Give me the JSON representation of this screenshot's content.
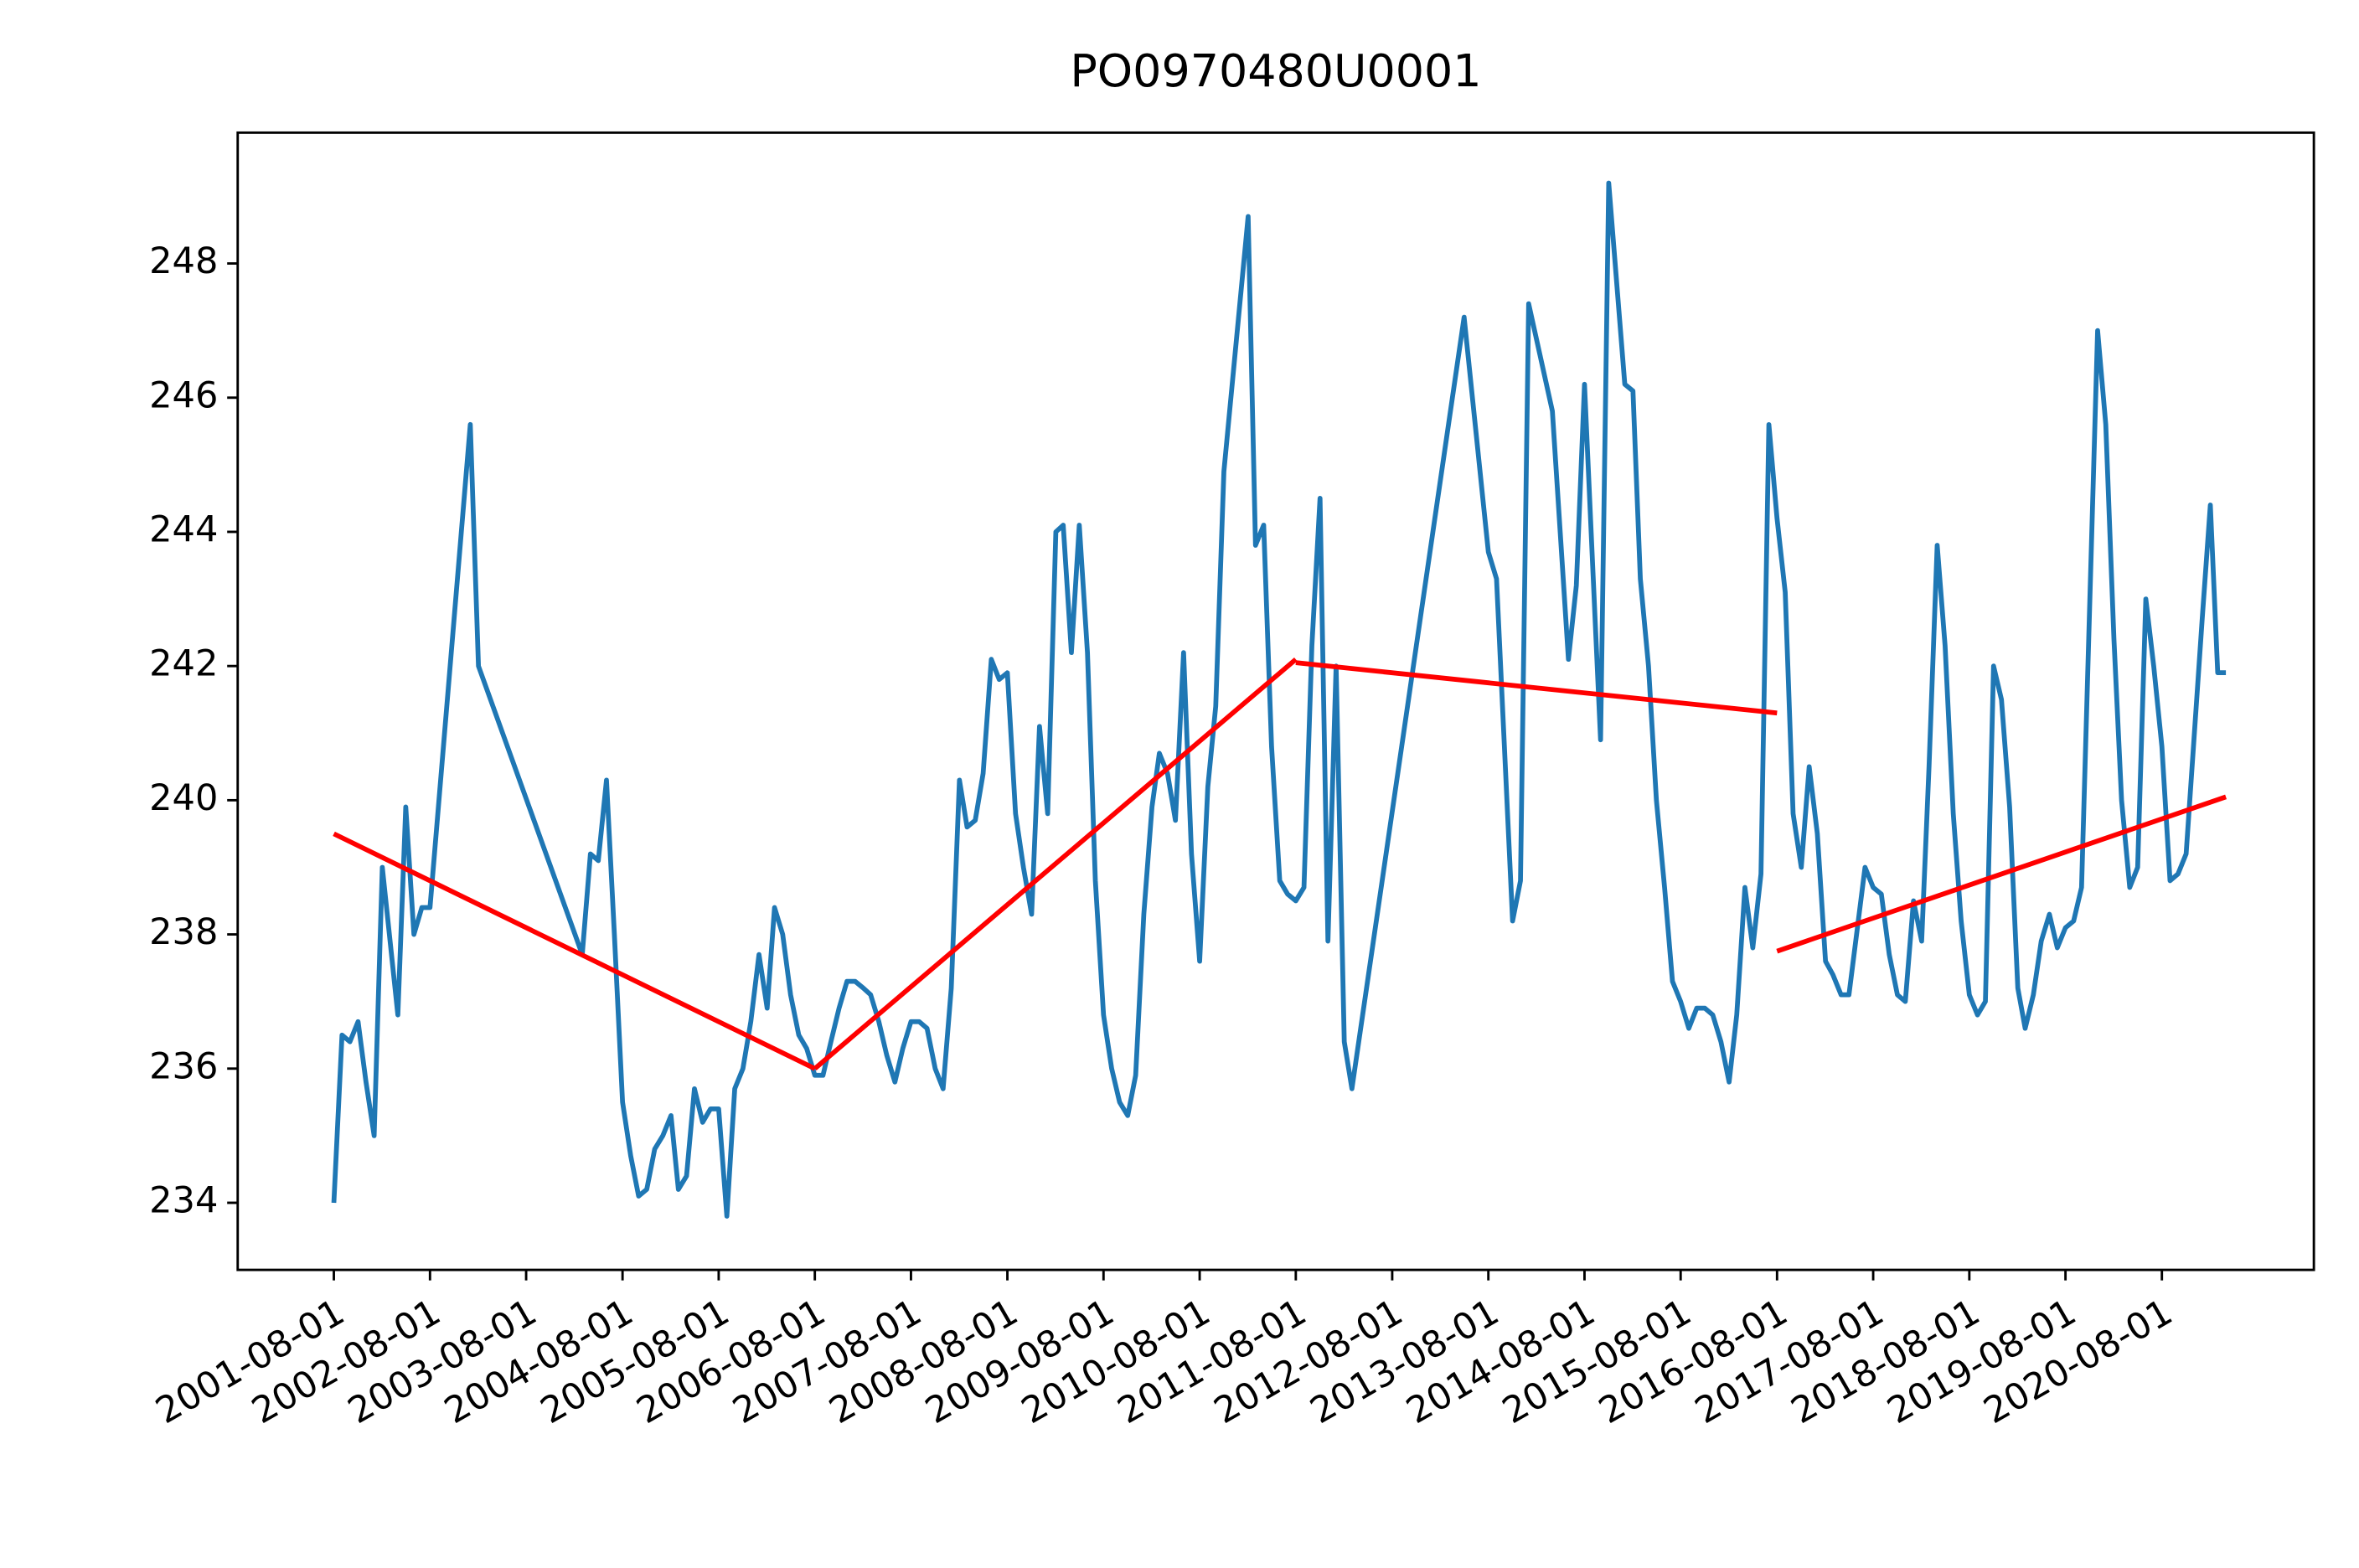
{
  "chart_data": {
    "type": "line",
    "title": "PO0970480U0001",
    "xlim": [
      "2000-08-01",
      "2022-03-01"
    ],
    "ylim": [
      233.0,
      249.95
    ],
    "yticks": [
      234,
      236,
      238,
      240,
      242,
      244,
      246,
      248
    ],
    "xticks": [
      "2001-08-01",
      "2002-08-01",
      "2003-08-01",
      "2004-08-01",
      "2005-08-01",
      "2006-08-01",
      "2007-08-01",
      "2008-08-01",
      "2009-08-01",
      "2010-08-01",
      "2011-08-01",
      "2012-08-01",
      "2013-08-01",
      "2014-08-01",
      "2015-08-01",
      "2016-08-01",
      "2017-08-01",
      "2018-08-01",
      "2019-08-01",
      "2020-08-01"
    ],
    "series": [
      {
        "color": "#1f77b4",
        "x": [
          "2001-08-01",
          "2001-09-01",
          "2001-10-01",
          "2001-11-01",
          "2001-12-01",
          "2002-01-01",
          "2002-02-01",
          "2002-04-01",
          "2002-05-01",
          "2002-06-01",
          "2002-07-01",
          "2002-08-01",
          "2003-01-01",
          "2003-02-01",
          "2004-03-01",
          "2004-04-01",
          "2004-05-01",
          "2004-06-01",
          "2004-07-01",
          "2004-08-01",
          "2004-09-01",
          "2004-10-01",
          "2004-11-01",
          "2004-12-01",
          "2005-01-01",
          "2005-02-01",
          "2005-03-01",
          "2005-04-01",
          "2005-05-01",
          "2005-06-01",
          "2005-07-01",
          "2005-08-01",
          "2005-09-01",
          "2005-10-01",
          "2005-11-01",
          "2005-12-01",
          "2006-01-01",
          "2006-02-01",
          "2006-03-01",
          "2006-04-01",
          "2006-05-01",
          "2006-06-01",
          "2006-07-01",
          "2006-08-01",
          "2006-09-01",
          "2006-10-01",
          "2006-11-01",
          "2006-12-01",
          "2007-01-01",
          "2007-02-01",
          "2007-03-01",
          "2007-04-01",
          "2007-05-01",
          "2007-06-01",
          "2007-07-01",
          "2007-08-01",
          "2007-09-01",
          "2007-10-01",
          "2007-11-01",
          "2007-12-01",
          "2008-01-01",
          "2008-02-01",
          "2008-03-01",
          "2008-04-01",
          "2008-05-01",
          "2008-06-01",
          "2008-07-01",
          "2008-08-01",
          "2008-09-01",
          "2008-10-01",
          "2008-11-01",
          "2008-12-01",
          "2009-01-01",
          "2009-02-01",
          "2009-03-01",
          "2009-04-01",
          "2009-05-01",
          "2009-06-01",
          "2009-07-01",
          "2009-08-01",
          "2009-09-01",
          "2009-10-01",
          "2009-11-01",
          "2009-12-01",
          "2010-01-01",
          "2010-02-01",
          "2010-03-01",
          "2010-04-01",
          "2010-05-01",
          "2010-06-01",
          "2010-07-01",
          "2010-08-01",
          "2010-09-01",
          "2010-10-01",
          "2010-11-01",
          "2011-02-01",
          "2011-03-01",
          "2011-04-01",
          "2011-05-01",
          "2011-06-01",
          "2011-07-01",
          "2011-08-01",
          "2011-09-01",
          "2011-10-01",
          "2011-11-01",
          "2011-12-01",
          "2012-01-01",
          "2012-02-01",
          "2012-03-01",
          "2013-05-01",
          "2013-08-01",
          "2013-09-01",
          "2013-11-01",
          "2013-12-01",
          "2014-01-01",
          "2014-04-01",
          "2014-06-01",
          "2014-07-01",
          "2014-08-01",
          "2014-09-01",
          "2014-10-01",
          "2014-11-01",
          "2015-01-01",
          "2015-02-01",
          "2015-03-01",
          "2015-04-01",
          "2015-05-01",
          "2015-06-01",
          "2015-07-01",
          "2015-08-01",
          "2015-09-01",
          "2015-10-01",
          "2015-11-01",
          "2015-12-01",
          "2016-01-01",
          "2016-02-01",
          "2016-03-01",
          "2016-04-01",
          "2016-05-01",
          "2016-06-01",
          "2016-07-01",
          "2016-08-01",
          "2016-09-01",
          "2016-10-01",
          "2016-11-01",
          "2016-12-01",
          "2017-01-01",
          "2017-02-01",
          "2017-03-01",
          "2017-04-01",
          "2017-05-01",
          "2017-07-01",
          "2017-08-01",
          "2017-09-01",
          "2017-10-01",
          "2017-11-01",
          "2017-12-01",
          "2018-01-01",
          "2018-02-01",
          "2018-03-01",
          "2018-04-01",
          "2018-05-01",
          "2018-06-01",
          "2018-07-01",
          "2018-08-01",
          "2018-09-01",
          "2018-10-01",
          "2018-11-01",
          "2018-12-01",
          "2019-01-01",
          "2019-02-01",
          "2019-03-01",
          "2019-04-01",
          "2019-05-01",
          "2019-06-01",
          "2019-07-01",
          "2019-08-01",
          "2019-09-01",
          "2019-10-01",
          "2019-12-01",
          "2020-01-01",
          "2020-02-01",
          "2020-03-01",
          "2020-04-01",
          "2020-05-01",
          "2020-06-01",
          "2020-07-01",
          "2020-08-01",
          "2020-09-01",
          "2020-10-01",
          "2020-11-01",
          "2021-01-01",
          "2021-02-01",
          "2021-03-01",
          "2021-04-01"
        ],
        "values": [
          234.0,
          236.5,
          236.4,
          236.7,
          235.8,
          235.0,
          239.0,
          236.8,
          239.9,
          238.0,
          238.4,
          238.4,
          245.6,
          242.0,
          237.7,
          239.2,
          239.1,
          240.3,
          238.0,
          235.5,
          234.7,
          234.1,
          234.2,
          234.8,
          235.0,
          235.3,
          234.2,
          234.4,
          235.7,
          235.2,
          235.4,
          235.4,
          233.8,
          235.7,
          236.0,
          236.7,
          237.7,
          236.9,
          238.4,
          238.0,
          237.1,
          236.5,
          236.3,
          235.9,
          235.9,
          236.4,
          236.9,
          237.3,
          237.3,
          237.2,
          237.1,
          236.7,
          236.2,
          235.8,
          236.3,
          236.7,
          236.7,
          236.6,
          236.0,
          235.7,
          237.2,
          240.3,
          239.6,
          239.7,
          240.4,
          242.1,
          241.8,
          241.9,
          239.8,
          239.0,
          238.3,
          241.1,
          239.8,
          244.0,
          244.1,
          242.2,
          244.1,
          242.2,
          238.8,
          236.8,
          236.0,
          235.5,
          235.3,
          235.9,
          238.3,
          239.9,
          240.7,
          240.4,
          239.7,
          242.2,
          239.2,
          237.6,
          240.2,
          241.4,
          244.9,
          248.7,
          243.8,
          244.1,
          240.8,
          238.8,
          238.6,
          238.5,
          238.7,
          242.3,
          244.5,
          237.9,
          242.0,
          236.4,
          235.7,
          247.2,
          243.7,
          243.3,
          238.2,
          238.8,
          247.4,
          245.8,
          242.1,
          243.2,
          246.2,
          243.5,
          240.9,
          249.2,
          246.2,
          246.1,
          243.3,
          242.0,
          240.0,
          238.7,
          237.3,
          237.0,
          236.6,
          236.9,
          236.9,
          236.8,
          236.4,
          235.8,
          236.8,
          238.7,
          237.8,
          238.9,
          245.6,
          244.2,
          243.1,
          239.8,
          239.0,
          240.5,
          239.5,
          237.6,
          237.4,
          237.1,
          237.1,
          239.0,
          238.7,
          238.6,
          237.7,
          237.1,
          237.0,
          238.5,
          237.9,
          240.5,
          243.8,
          242.3,
          239.8,
          238.2,
          237.1,
          236.8,
          237.0,
          242.0,
          241.5,
          239.9,
          237.2,
          236.6,
          237.1,
          237.9,
          238.3,
          237.8,
          238.1,
          238.2,
          238.7,
          247.0,
          245.6,
          242.4,
          240.0,
          238.7,
          239.0,
          243.0,
          242.0,
          240.8,
          238.8,
          238.9,
          239.2,
          242.7,
          244.4,
          241.9,
          241.9
        ]
      },
      {
        "color": "#ff0000",
        "x": [
          "2001-08-01",
          "2006-08-01"
        ],
        "values": [
          239.5,
          236.0
        ]
      },
      {
        "color": "#ff0000",
        "x": [
          "2006-08-01",
          "2011-08-01"
        ],
        "values": [
          236.0,
          242.1
        ]
      },
      {
        "color": "#ff0000",
        "x": [
          "2011-08-01",
          "2016-08-01"
        ],
        "values": [
          242.05,
          241.3
        ]
      },
      {
        "color": "#ff0000",
        "x": [
          "2016-08-01",
          "2021-04-01"
        ],
        "values": [
          237.75,
          240.05
        ]
      }
    ]
  }
}
